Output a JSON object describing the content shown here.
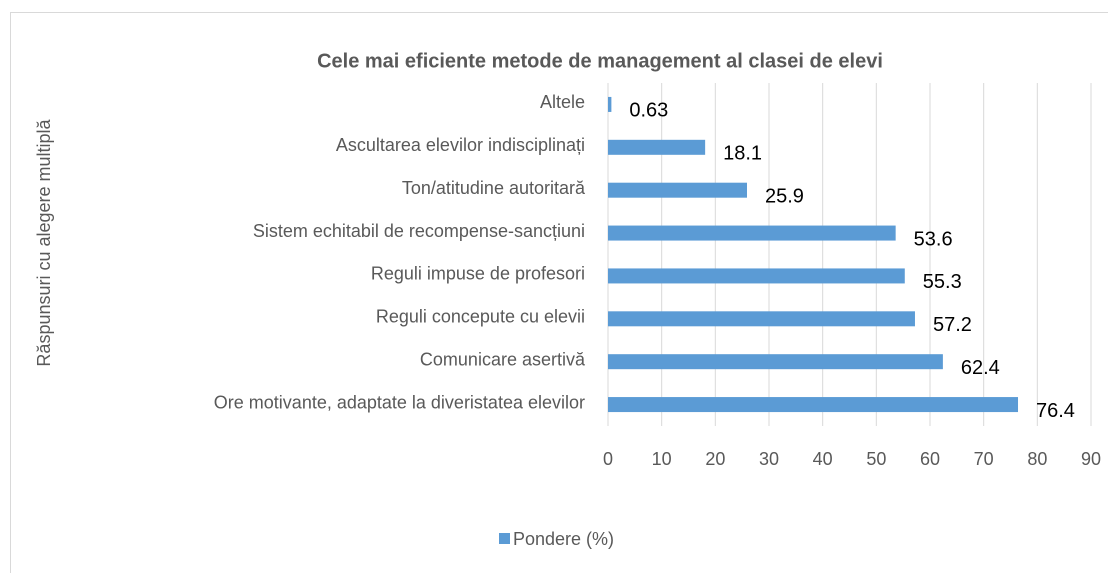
{
  "chart_data": {
    "type": "bar",
    "orientation": "horizontal",
    "title": "Cele mai eficiente metode de management al clasei de elevi",
    "ylabel": "Răspunsuri cu alegere multiplă",
    "categories": [
      "Altele",
      "Ascultarea elevilor indisciplinați",
      "Ton/atitudine autoritară",
      "Sistem echitabil de recompense-sancțiuni",
      "Reguli impuse de profesori",
      "Reguli concepute cu elevii",
      "Comunicare asertivă",
      "Ore motivante, adaptate la diveristatea elevilor"
    ],
    "series": [
      {
        "name": "Pondere (%)",
        "color": "#5b9bd5",
        "values": [
          0.63,
          18.1,
          25.9,
          53.6,
          55.3,
          57.2,
          62.4,
          76.4
        ]
      }
    ],
    "xlim": [
      0,
      90
    ],
    "xticks": [
      0,
      10,
      20,
      30,
      40,
      50,
      60,
      70,
      80,
      90
    ],
    "grid": true,
    "legend": "bottom"
  }
}
